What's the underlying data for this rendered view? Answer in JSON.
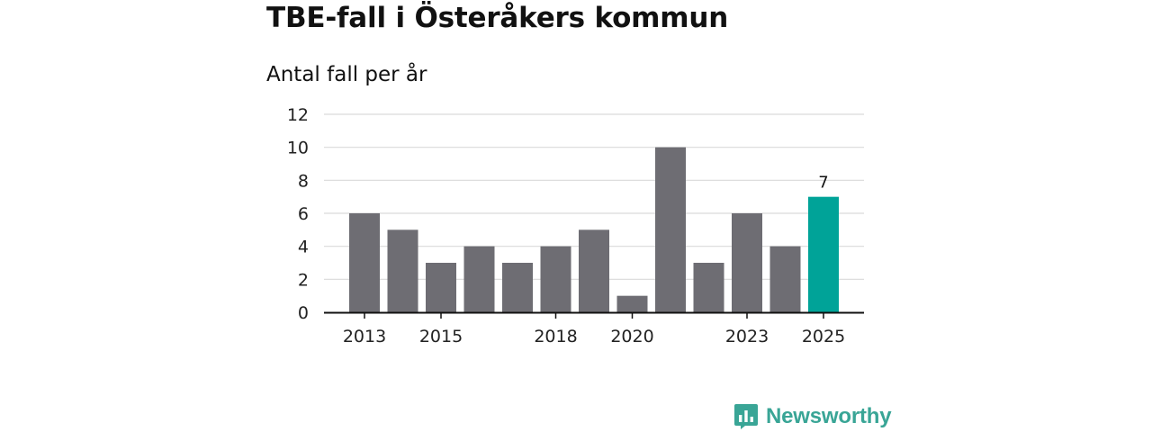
{
  "chart_data": {
    "type": "bar",
    "title": "TBE-fall i Österåkers kommun",
    "subtitle": "Antal fall per år",
    "categories": [
      "2013",
      "2014",
      "2015",
      "2016",
      "2017",
      "2018",
      "2019",
      "2020",
      "2021",
      "2022",
      "2023",
      "2024",
      "2025"
    ],
    "values": [
      6,
      5,
      3,
      4,
      3,
      4,
      5,
      1,
      10,
      3,
      6,
      4,
      7
    ],
    "x_tick_labels": [
      "2013",
      "2015",
      "2018",
      "2020",
      "2023",
      "2025"
    ],
    "y_ticks": [
      0,
      2,
      4,
      6,
      8,
      10,
      12
    ],
    "ylim": [
      0,
      12
    ],
    "grid": true,
    "highlight": {
      "category": "2025",
      "label": "7"
    },
    "bar_color": "#6e6d73",
    "highlight_color": "#00a398"
  },
  "brand": {
    "name": "Newsworthy",
    "icon": "newsworthy-logo-icon",
    "color": "#39a596"
  }
}
